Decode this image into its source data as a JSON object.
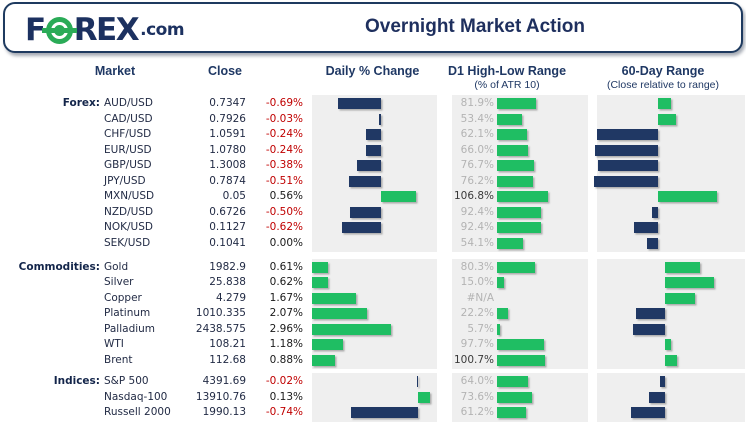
{
  "header": {
    "logo_pre": "F",
    "logo_post": "REX",
    "logo_suffix": ".com",
    "title": "Overnight Market Action"
  },
  "columns": {
    "market": "Market",
    "close": "Close",
    "daily": "Daily % Change",
    "d1": "D1 High-Low Range",
    "d1_sub": "(% of ATR 10)",
    "r60": "60-Day Range",
    "r60_sub": "(Close relative to range)"
  },
  "colors": {
    "navy": "#203864",
    "green": "#1fbe63",
    "red": "#c00000",
    "plot_bg": "#efefef",
    "muted_label": "#b3b3b3"
  },
  "chart_data": {
    "type": "table",
    "title": "Overnight Market Action",
    "notes": "daily_pct drawn as diverging data bars per group; d1_pct drawn as green bars on global 0-106.8 scale; r60 is estimated close position in 60-day range as signed fraction of cell width around group axis",
    "groups": [
      {
        "label": "Forex:",
        "r60_axis": 0.412,
        "rows": [
          {
            "market": "AUD/USD",
            "close": "0.7347",
            "daily_pct": -0.69,
            "daily_label": "-0.69%",
            "d1_pct": 81.9,
            "d1_label": "81.9%",
            "r60": 0.088
          },
          {
            "market": "CAD/USD",
            "close": "0.7926",
            "daily_pct": -0.03,
            "daily_label": "-0.03%",
            "d1_pct": 53.4,
            "d1_label": "53.4%",
            "r60": 0.122
          },
          {
            "market": "CHF/USD",
            "close": "1.0591",
            "daily_pct": -0.24,
            "daily_label": "-0.24%",
            "d1_pct": 62.1,
            "d1_label": "62.1%",
            "r60": -0.412
          },
          {
            "market": "EUR/USD",
            "close": "1.0780",
            "daily_pct": -0.24,
            "daily_label": "-0.24%",
            "d1_pct": 66.0,
            "d1_label": "66.0%",
            "r60": -0.426
          },
          {
            "market": "GBP/USD",
            "close": "1.3008",
            "daily_pct": -0.38,
            "daily_label": "-0.38%",
            "d1_pct": 76.7,
            "d1_label": "76.7%",
            "r60": -0.405
          },
          {
            "market": "JPY/USD",
            "close": "0.7874",
            "daily_pct": -0.51,
            "daily_label": "-0.51%",
            "d1_pct": 76.2,
            "d1_label": "76.2%",
            "r60": -0.432
          },
          {
            "market": "MXN/USD",
            "close": "0.05",
            "daily_pct": 0.56,
            "daily_label": "0.56%",
            "d1_pct": 106.8,
            "d1_label": "106.8%",
            "r60": 0.399
          },
          {
            "market": "NZD/USD",
            "close": "0.6726",
            "daily_pct": -0.5,
            "daily_label": "-0.50%",
            "d1_pct": 92.4,
            "d1_label": "92.4%",
            "r60": -0.041
          },
          {
            "market": "NOK/USD",
            "close": "0.1127",
            "daily_pct": -0.62,
            "daily_label": "-0.62%",
            "d1_pct": 92.4,
            "d1_label": "92.4%",
            "r60": -0.162
          },
          {
            "market": "SEK/USD",
            "close": "0.1041",
            "daily_pct": 0.0,
            "daily_label": "0.00%",
            "d1_pct": 54.1,
            "d1_label": "54.1%",
            "r60": -0.074
          }
        ]
      },
      {
        "label": "Commodities:",
        "r60_axis": 0.459,
        "rows": [
          {
            "market": "Gold",
            "close": "1982.9",
            "daily_pct": 0.61,
            "daily_label": "0.61%",
            "d1_pct": 80.3,
            "d1_label": "80.3%",
            "r60": 0.236
          },
          {
            "market": "Silver",
            "close": "25.838",
            "daily_pct": 0.62,
            "daily_label": "0.62%",
            "d1_pct": 15.0,
            "d1_label": "15.0%",
            "r60": 0.331
          },
          {
            "market": "Copper",
            "close": "4.279",
            "daily_pct": 1.67,
            "daily_label": "1.67%",
            "d1_pct": null,
            "d1_label": "#N/A",
            "r60": 0.203
          },
          {
            "market": "Platinum",
            "close": "1010.335",
            "daily_pct": 2.07,
            "daily_label": "2.07%",
            "d1_pct": 22.2,
            "d1_label": "22.2%",
            "r60": -0.196
          },
          {
            "market": "Palladium",
            "close": "2438.575",
            "daily_pct": 2.96,
            "daily_label": "2.96%",
            "d1_pct": 5.7,
            "d1_label": "5.7%",
            "r60": -0.216
          },
          {
            "market": "WTI",
            "close": "108.21",
            "daily_pct": 1.18,
            "daily_label": "1.18%",
            "d1_pct": 97.7,
            "d1_label": "97.7%",
            "r60": 0.041
          },
          {
            "market": "Brent",
            "close": "112.68",
            "daily_pct": 0.88,
            "daily_label": "0.88%",
            "d1_pct": 100.7,
            "d1_label": "100.7%",
            "r60": 0.081
          }
        ]
      },
      {
        "label": "Indices:",
        "r60_axis": 0.459,
        "rows": [
          {
            "market": "S&P 500",
            "close": "4391.69",
            "daily_pct": -0.02,
            "daily_label": "-0.02%",
            "d1_pct": 64.0,
            "d1_label": "64.0%",
            "r60": -0.034
          },
          {
            "market": "Nasdaq-100",
            "close": "13910.76",
            "daily_pct": 0.13,
            "daily_label": "0.13%",
            "d1_pct": 73.6,
            "d1_label": "73.6%",
            "r60": -0.108
          },
          {
            "market": "Russell 2000",
            "close": "1990.13",
            "daily_pct": -0.74,
            "daily_label": "-0.74%",
            "d1_pct": 61.2,
            "d1_label": "61.2%",
            "r60": -0.23
          }
        ]
      }
    ]
  }
}
